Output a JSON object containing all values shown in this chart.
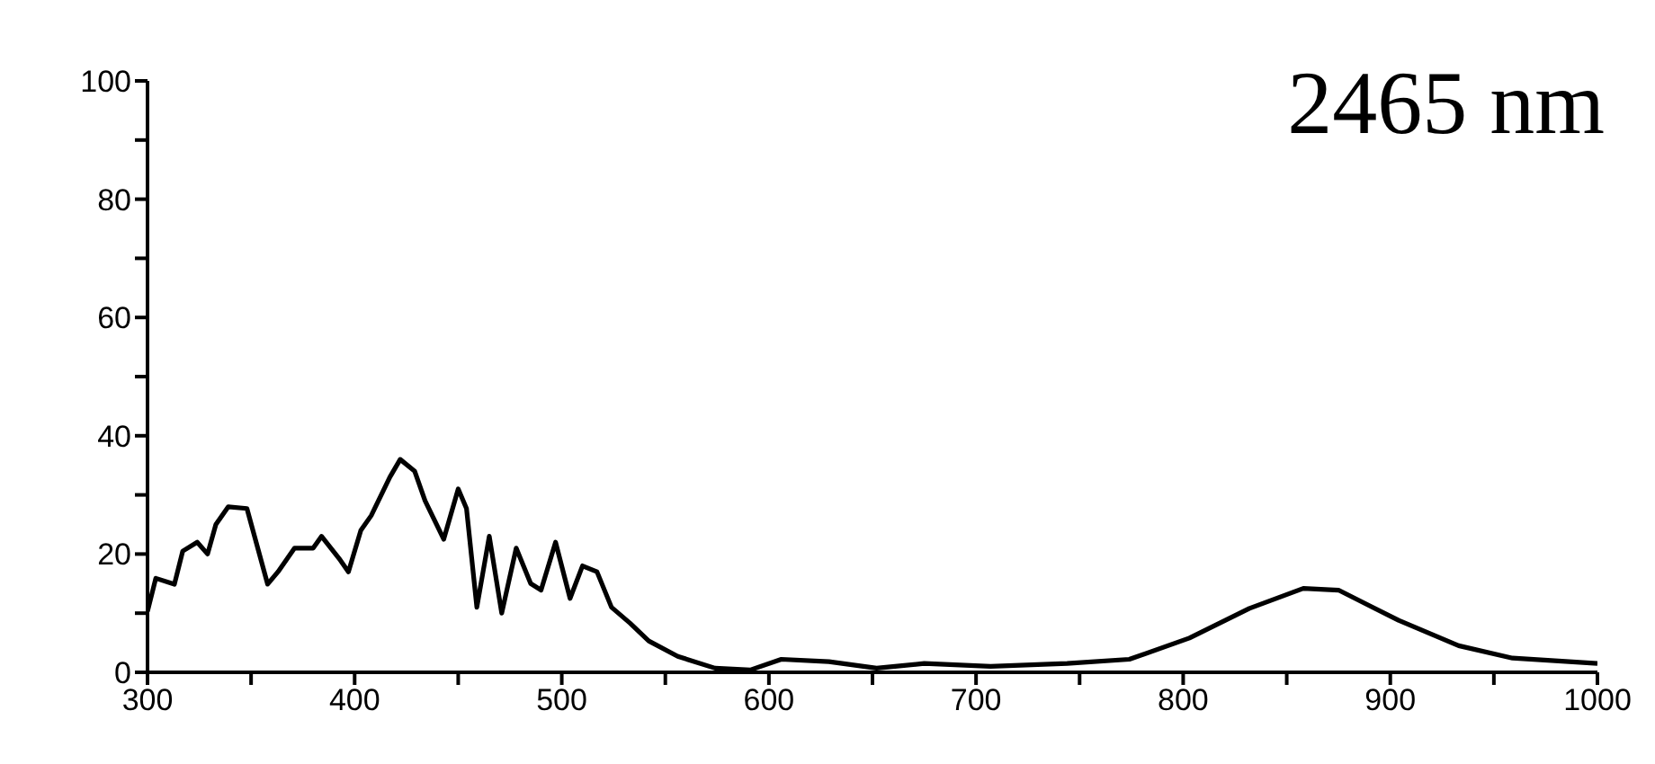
{
  "chart_data": {
    "type": "line",
    "annotations": [
      "2465 nm"
    ],
    "series": [
      {
        "color": "#000000",
        "x": [
          300,
          304,
          313,
          317,
          324,
          329,
          333,
          339,
          348,
          358,
          363,
          371,
          380,
          384,
          393,
          397,
          403,
          408,
          417,
          422,
          429,
          434,
          443,
          450,
          454,
          459,
          465,
          471,
          478,
          485,
          490,
          497,
          504,
          510,
          517,
          524,
          533,
          542,
          556,
          574,
          591,
          606,
          629,
          652,
          675,
          707,
          744,
          774,
          803,
          832,
          858,
          875,
          904,
          933,
          959,
          1000
        ],
        "values": [
          10.3,
          15.9,
          14.9,
          20.5,
          22,
          20,
          25,
          28,
          27.7,
          14.9,
          17,
          21,
          21,
          23,
          19,
          17,
          24,
          26.5,
          33,
          36,
          34,
          29,
          22.5,
          31,
          27.7,
          11,
          23,
          10,
          21,
          15,
          13.9,
          22,
          12.5,
          18,
          17,
          11,
          8.3,
          5.3,
          2.7,
          0.7,
          0.4,
          2.2,
          1.8,
          0.7,
          1.5,
          1,
          1.5,
          2.2,
          5.8,
          10.8,
          14.2,
          13.9,
          8.8,
          4.5,
          2.4,
          1.5
        ]
      }
    ],
    "xlim": [
      300,
      1000
    ],
    "xticks": [
      300,
      {
        "value": 350,
        "label": null
      },
      400,
      {
        "value": 450,
        "label": null
      },
      500,
      {
        "value": 550,
        "label": null
      },
      600,
      {
        "value": 650,
        "label": null
      },
      700,
      {
        "value": 750,
        "label": null
      },
      800,
      {
        "value": 850,
        "label": null
      },
      900,
      {
        "value": 950,
        "label": null
      },
      1000
    ],
    "ylim": [
      0,
      100
    ],
    "yticks": [
      0,
      {
        "value": 10,
        "label": null
      },
      20,
      {
        "value": 30,
        "label": null
      },
      40,
      {
        "value": 50,
        "label": null
      },
      60,
      {
        "value": 70,
        "label": null
      },
      80,
      {
        "value": 90,
        "label": null
      },
      100
    ],
    "grid": false,
    "marker": "none",
    "line_style": "solid"
  }
}
